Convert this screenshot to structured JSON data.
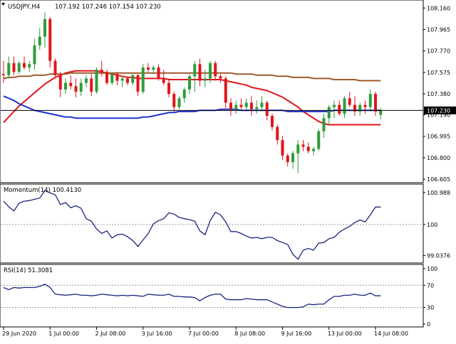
{
  "header": {
    "symbol_timeframe": "USDJPY,H4",
    "ohlc": "107.192 107.246 107.154 107.230"
  },
  "colors": {
    "bull": "#2e9d3a",
    "bear": "#e0161b",
    "ma_fast": "#e0161b",
    "ma_mid": "#2233cc",
    "ma_slow": "#a05a2c",
    "current_price_bg": "#000000",
    "indicator_line": "#1a237e",
    "border": "#000000",
    "grid": "#9a9a9a"
  },
  "price_axis": {
    "ticks": [
      "108.160",
      "107.965",
      "107.770",
      "107.575",
      "107.380",
      "107.190",
      "106.995",
      "106.800",
      "106.605"
    ],
    "current_price_label": "107.230"
  },
  "momentum": {
    "label": "Momentum(14) 100.4130",
    "ticks": [
      "100.988",
      "100",
      "99.0376"
    ]
  },
  "rsi": {
    "label": "RSI(14) 51.3081",
    "ticks": [
      "100",
      "70",
      "30",
      "0"
    ]
  },
  "time_axis": {
    "labels": [
      "29 Jun 2020",
      "1 Jul 00:00",
      "2 Jul 08:00",
      "3 Jul 16:00",
      "7 Jul 00:00",
      "8 Jul 08:00",
      "9 Jul 16:00",
      "13 Jul 00:00",
      "14 Jul 08:00"
    ]
  },
  "chart_data": [
    {
      "type": "candlestick",
      "series": [
        {
          "name": "USDJPY,H4",
          "ohlc": [
            [
              107.56,
              107.68,
              107.48,
              107.55
            ],
            [
              107.55,
              107.72,
              107.52,
              107.66
            ],
            [
              107.66,
              107.72,
              107.55,
              107.58
            ],
            [
              107.58,
              107.68,
              107.56,
              107.66
            ],
            [
              107.66,
              107.72,
              107.6,
              107.62
            ],
            [
              107.62,
              107.68,
              107.58,
              107.65
            ],
            [
              107.65,
              107.88,
              107.6,
              107.82
            ],
            [
              107.82,
              107.98,
              107.78,
              107.9
            ],
            [
              107.9,
              108.12,
              107.8,
              108.06
            ],
            [
              108.06,
              108.08,
              107.62,
              107.68
            ],
            [
              107.68,
              107.7,
              107.52,
              107.55
            ],
            [
              107.55,
              107.58,
              107.35,
              107.42
            ],
            [
              107.42,
              107.52,
              107.38,
              107.48
            ],
            [
              107.48,
              107.55,
              107.42,
              107.45
            ],
            [
              107.45,
              107.52,
              107.35,
              107.4
            ],
            [
              107.4,
              107.52,
              107.36,
              107.48
            ],
            [
              107.48,
              107.55,
              107.44,
              107.52
            ],
            [
              107.52,
              107.56,
              107.36,
              107.4
            ],
            [
              107.4,
              107.62,
              107.38,
              107.6
            ],
            [
              107.6,
              107.68,
              107.54,
              107.58
            ],
            [
              107.58,
              107.6,
              107.46,
              107.48
            ],
            [
              107.48,
              107.58,
              107.46,
              107.56
            ],
            [
              107.56,
              107.58,
              107.46,
              107.5
            ],
            [
              107.5,
              107.54,
              107.44,
              107.52
            ],
            [
              107.52,
              107.54,
              107.46,
              107.48
            ],
            [
              107.48,
              107.56,
              107.46,
              107.55
            ],
            [
              107.55,
              107.56,
              107.36,
              107.4
            ],
            [
              107.4,
              107.65,
              107.38,
              107.62
            ],
            [
              107.62,
              107.66,
              107.58,
              107.6
            ],
            [
              107.6,
              107.64,
              107.56,
              107.62
            ],
            [
              107.62,
              107.65,
              107.5,
              107.52
            ],
            [
              107.52,
              107.6,
              107.46,
              107.48
            ],
            [
              107.48,
              107.52,
              107.35,
              107.38
            ],
            [
              107.38,
              107.4,
              107.22,
              107.26
            ],
            [
              107.26,
              107.36,
              107.24,
              107.34
            ],
            [
              107.34,
              107.44,
              107.3,
              107.42
            ],
            [
              107.42,
              107.56,
              107.38,
              107.54
            ],
            [
              107.54,
              107.68,
              107.4,
              107.65
            ],
            [
              107.65,
              107.7,
              107.45,
              107.5
            ],
            [
              107.5,
              107.6,
              107.44,
              107.52
            ],
            [
              107.52,
              107.68,
              107.48,
              107.66
            ],
            [
              107.66,
              107.68,
              107.5,
              107.54
            ],
            [
              107.54,
              107.56,
              107.48,
              107.52
            ],
            [
              107.52,
              107.54,
              107.25,
              107.3
            ],
            [
              107.3,
              107.34,
              107.18,
              107.24
            ],
            [
              107.24,
              107.32,
              107.2,
              107.28
            ],
            [
              107.28,
              107.34,
              107.24,
              107.26
            ],
            [
              107.26,
              107.34,
              107.22,
              107.3
            ],
            [
              107.3,
              107.36,
              107.18,
              107.24
            ],
            [
              107.24,
              107.32,
              107.2,
              107.26
            ],
            [
              107.26,
              107.36,
              107.22,
              107.3
            ],
            [
              107.3,
              107.32,
              107.14,
              107.18
            ],
            [
              107.18,
              107.2,
              107.05,
              107.08
            ],
            [
              107.08,
              107.1,
              106.92,
              106.96
            ],
            [
              106.96,
              107.0,
              106.78,
              106.82
            ],
            [
              106.82,
              106.84,
              106.72,
              106.76
            ],
            [
              106.76,
              106.86,
              106.7,
              106.84
            ],
            [
              106.84,
              106.96,
              106.66,
              106.92
            ],
            [
              106.92,
              106.96,
              106.86,
              106.9
            ],
            [
              106.9,
              106.94,
              106.84,
              106.86
            ],
            [
              106.86,
              106.9,
              106.82,
              106.88
            ],
            [
              106.88,
              107.06,
              106.86,
              107.04
            ],
            [
              107.04,
              107.2,
              106.98,
              107.16
            ],
            [
              107.16,
              107.28,
              107.1,
              107.26
            ],
            [
              107.26,
              107.32,
              107.16,
              107.28
            ],
            [
              107.28,
              107.32,
              107.18,
              107.2
            ],
            [
              107.2,
              107.36,
              107.16,
              107.34
            ],
            [
              107.34,
              107.4,
              107.26,
              107.28
            ],
            [
              107.28,
              107.36,
              107.18,
              107.22
            ],
            [
              107.22,
              107.3,
              107.18,
              107.28
            ],
            [
              107.28,
              107.32,
              107.2,
              107.26
            ],
            [
              107.26,
              107.42,
              107.22,
              107.38
            ],
            [
              107.38,
              107.4,
              107.18,
              107.22
            ],
            [
              107.19,
              107.25,
              107.15,
              107.23
            ]
          ]
        }
      ],
      "overlays": [
        {
          "kind": "moving-average-fast",
          "values": [
            107.12,
            107.17,
            107.22,
            107.27,
            107.31,
            107.35,
            107.39,
            107.43,
            107.47,
            107.5,
            107.53,
            107.55,
            107.57,
            107.58,
            107.59,
            107.59,
            107.59,
            107.59,
            107.59,
            107.58,
            107.57,
            107.56,
            107.55,
            107.54,
            107.53,
            107.53,
            107.52,
            107.52,
            107.52,
            107.52,
            107.52,
            107.52,
            107.51,
            107.51,
            107.51,
            107.51,
            107.51,
            107.51,
            107.51,
            107.51,
            107.51,
            107.51,
            107.51,
            107.5,
            107.49,
            107.48,
            107.47,
            107.46,
            107.44,
            107.43,
            107.42,
            107.41,
            107.39,
            107.37,
            107.35,
            107.32,
            107.29,
            107.26,
            107.22,
            107.19,
            107.16,
            107.13,
            107.11,
            107.1,
            107.1,
            107.1,
            107.1,
            107.1,
            107.1,
            107.1,
            107.1,
            107.1,
            107.1,
            107.1
          ]
        },
        {
          "kind": "moving-average-mid",
          "values": [
            107.36,
            107.34,
            107.32,
            107.29,
            107.27,
            107.25,
            107.23,
            107.22,
            107.21,
            107.2,
            107.19,
            107.18,
            107.17,
            107.17,
            107.16,
            107.16,
            107.16,
            107.16,
            107.16,
            107.16,
            107.16,
            107.16,
            107.16,
            107.16,
            107.16,
            107.16,
            107.16,
            107.17,
            107.17,
            107.18,
            107.19,
            107.2,
            107.21,
            107.21,
            107.22,
            107.22,
            107.22,
            107.22,
            107.23,
            107.23,
            107.23,
            107.23,
            107.24,
            107.24,
            107.24,
            107.24,
            107.23,
            107.23,
            107.23,
            107.23,
            107.23,
            107.23,
            107.23,
            107.23,
            107.23,
            107.22,
            107.22,
            107.22,
            107.22,
            107.22,
            107.22,
            107.22,
            107.22,
            107.22,
            107.23,
            107.23,
            107.23,
            107.23,
            107.23,
            107.23,
            107.23,
            107.23,
            107.23,
            107.23
          ]
        },
        {
          "kind": "moving-average-slow",
          "values": [
            107.52,
            107.53,
            107.53,
            107.54,
            107.54,
            107.54,
            107.55,
            107.55,
            107.55,
            107.56,
            107.56,
            107.56,
            107.56,
            107.57,
            107.57,
            107.57,
            107.57,
            107.57,
            107.57,
            107.57,
            107.57,
            107.57,
            107.57,
            107.57,
            107.57,
            107.57,
            107.57,
            107.57,
            107.57,
            107.57,
            107.57,
            107.57,
            107.57,
            107.57,
            107.57,
            107.57,
            107.57,
            107.57,
            107.57,
            107.57,
            107.57,
            107.57,
            107.57,
            107.57,
            107.57,
            107.56,
            107.56,
            107.56,
            107.56,
            107.55,
            107.55,
            107.55,
            107.55,
            107.54,
            107.54,
            107.54,
            107.53,
            107.53,
            107.53,
            107.53,
            107.52,
            107.52,
            107.52,
            107.52,
            107.51,
            107.51,
            107.51,
            107.51,
            107.51,
            107.5,
            107.5,
            107.5,
            107.5,
            107.5
          ]
        }
      ],
      "y_range": [
        106.58,
        108.22
      ],
      "current_price": 107.23
    },
    {
      "type": "line",
      "series": [
        {
          "name": "Momentum(14) 100.4130",
          "values": [
            100.72,
            100.55,
            100.42,
            100.66,
            100.72,
            100.74,
            100.78,
            100.82,
            101.05,
            100.98,
            100.92,
            100.62,
            100.68,
            100.52,
            100.58,
            100.5,
            100.18,
            100.1,
            99.86,
            99.72,
            99.8,
            99.58,
            99.68,
            99.7,
            99.62,
            99.5,
            99.32,
            99.52,
            99.72,
            100.02,
            100.12,
            100.18,
            100.36,
            100.32,
            100.22,
            100.18,
            100.15,
            100.1,
            99.8,
            99.68,
            100.12,
            100.38,
            100.3,
            100.08,
            99.78,
            99.78,
            99.72,
            99.64,
            99.58,
            99.6,
            99.56,
            99.6,
            99.6,
            99.5,
            99.44,
            99.38,
            99.08,
            98.92,
            99.2,
            99.26,
            99.2,
            99.42,
            99.44,
            99.56,
            99.6,
            99.76,
            99.86,
            99.94,
            100.06,
            100.14,
            100.08,
            100.3,
            100.54,
            100.54
          ]
        }
      ],
      "y_range": [
        98.85,
        101.12
      ]
    },
    {
      "type": "line",
      "series": [
        {
          "name": "RSI(14) 51.3081",
          "values": [
            66,
            62,
            66,
            65,
            66,
            66,
            66,
            68,
            72,
            66,
            54,
            53,
            52,
            53,
            54,
            52,
            52,
            51,
            52,
            54,
            53,
            52,
            51,
            52,
            51,
            52,
            51,
            50,
            54,
            53,
            52,
            52,
            54,
            50,
            50,
            49,
            49,
            48,
            42,
            48,
            52,
            54,
            54,
            45,
            44,
            44,
            44,
            46,
            45,
            44,
            44,
            44,
            40,
            36,
            32,
            30,
            30,
            30,
            31,
            36,
            35,
            36,
            36,
            44,
            50,
            50,
            52,
            52,
            54,
            52,
            52,
            56,
            51,
            51
          ]
        }
      ],
      "y_range": [
        0,
        100
      ],
      "levels": [
        70,
        30
      ]
    }
  ]
}
